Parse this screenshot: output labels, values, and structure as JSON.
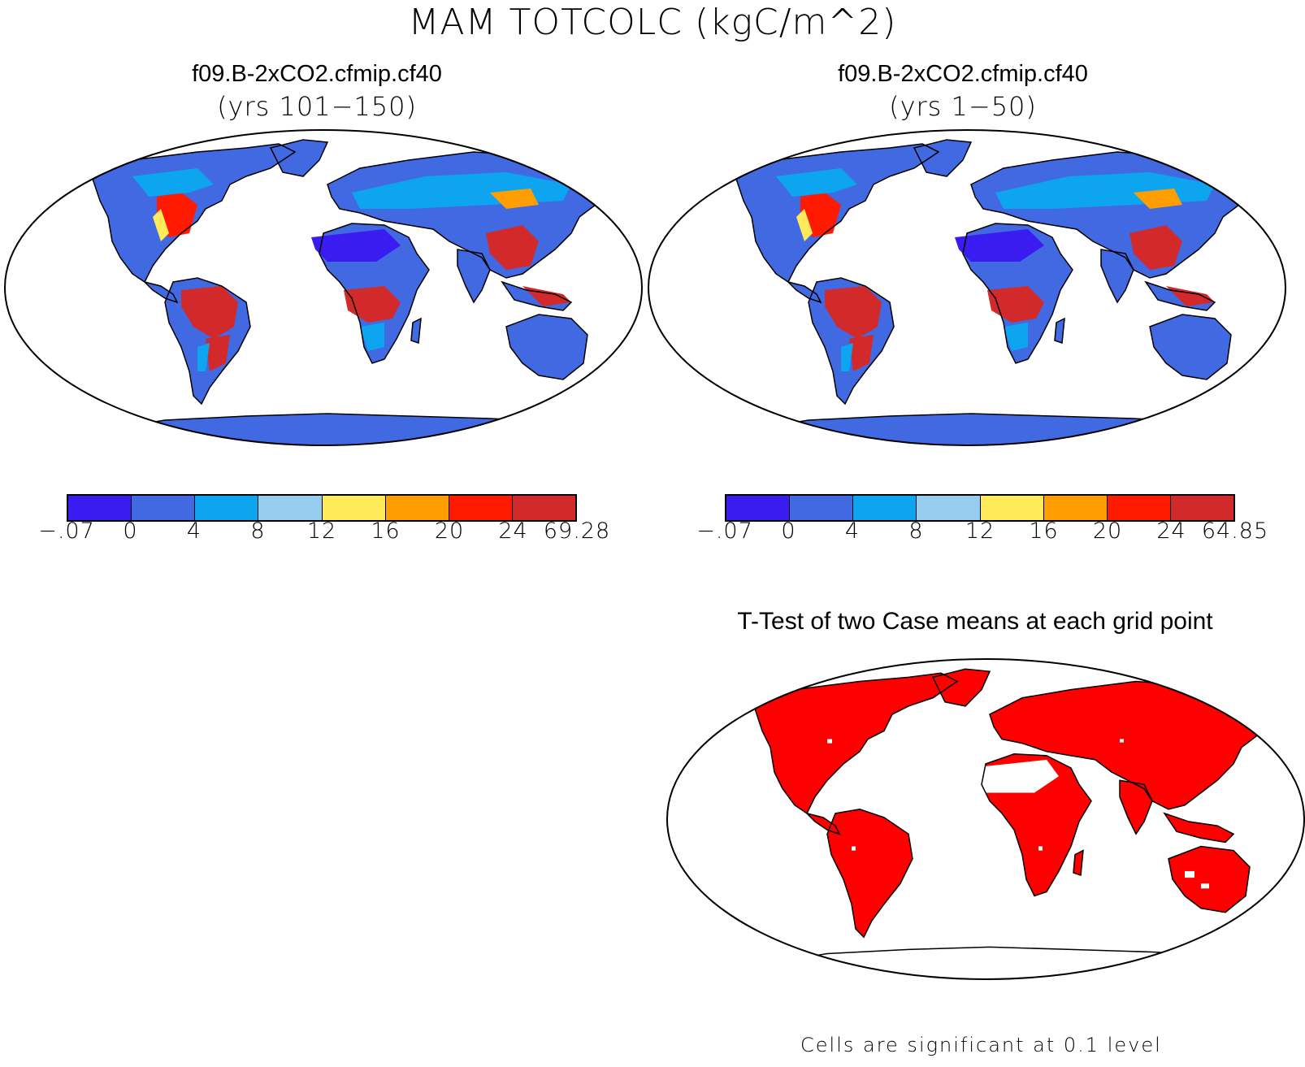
{
  "title": "MAM TOTCOLC (kgC/m^2)",
  "panels": [
    {
      "case": "f09.B-2xCO2.cfmip.cf40",
      "years": "(yrs 101−150)"
    },
    {
      "case": "f09.B-2xCO2.cfmip.cf40",
      "years": "(yrs 1−50)"
    }
  ],
  "colorbar": {
    "colors": [
      "#3a1cf0",
      "#4169e1",
      "#0ea5f0",
      "#96cdee",
      "#ffeb5a",
      "#ff9e00",
      "#ff1a00",
      "#d22a2a"
    ],
    "labels_left": [
      "−.07",
      "0",
      "4",
      "8",
      "12",
      "16",
      "20",
      "24",
      "69.28"
    ],
    "labels_right": [
      "−.07",
      "0",
      "4",
      "8",
      "12",
      "16",
      "20",
      "24",
      "64.85"
    ]
  },
  "ttest": {
    "title": "T-Test of two Case means at each grid point",
    "significant_color": "#ff0000",
    "footnote": "Cells are significant at 0.1 level"
  }
}
